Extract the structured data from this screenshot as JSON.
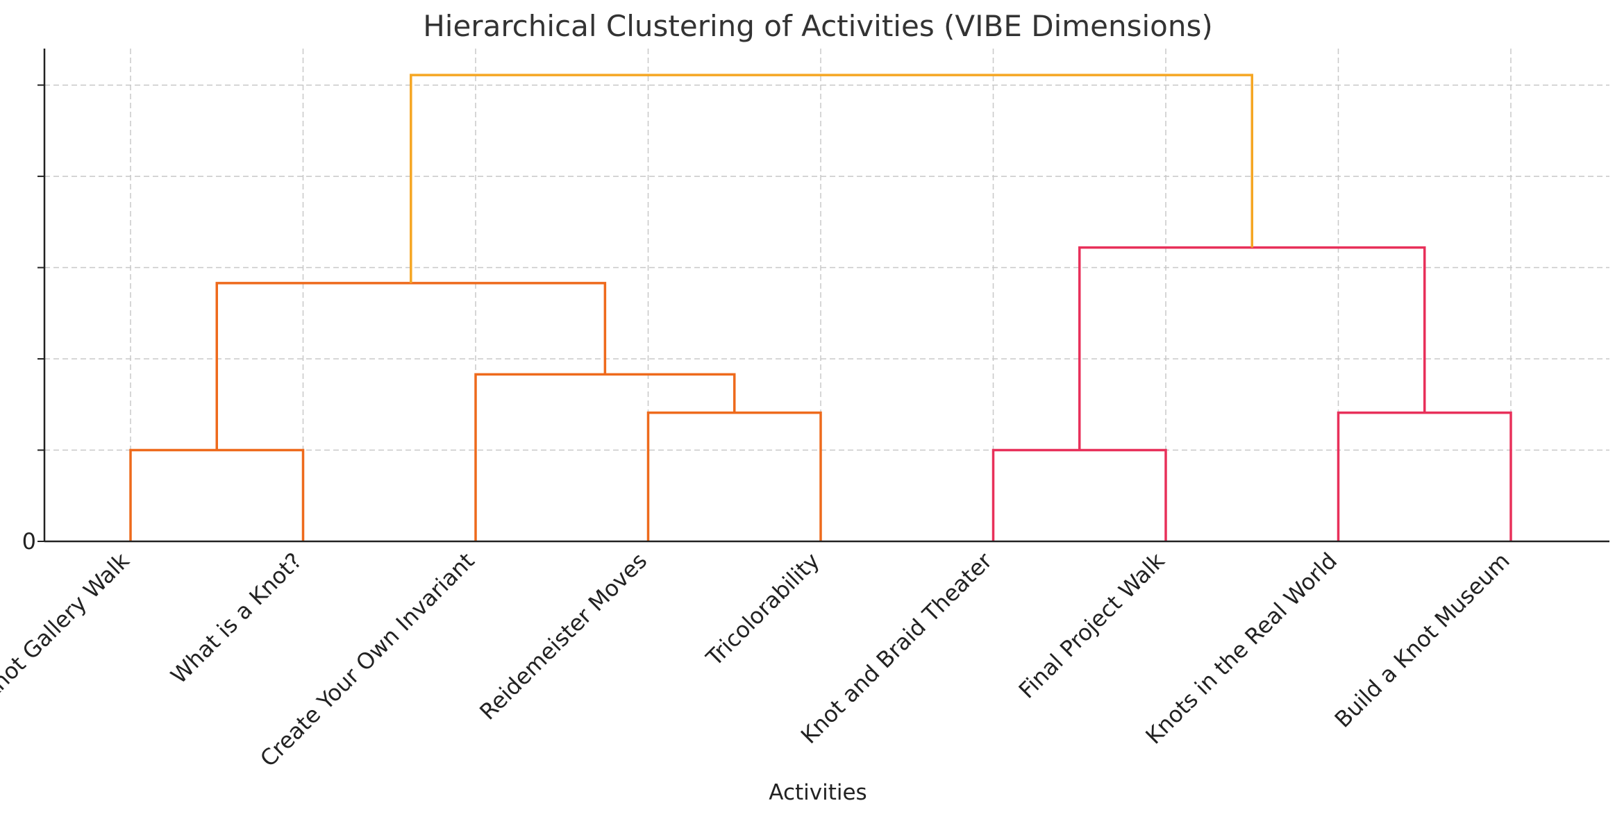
{
  "chart_data": {
    "type": "dendrogram",
    "title": "Hierarchical Clustering of Activities (VIBE Dimensions)",
    "xlabel": "Activities",
    "ylabel": "",
    "ylim": [
      0,
      5.4
    ],
    "y_ticks": [
      0,
      1,
      2,
      3,
      4,
      5
    ],
    "y_tick_labels": [
      "0",
      "",
      "",
      "",
      "",
      ""
    ],
    "grid": true,
    "leaves": [
      "Knot Gallery Walk",
      "What is a Knot?",
      "Create Your Own Invariant",
      "Reidemeister Moves",
      "Tricolorability",
      "Knot and Braid Theater",
      "Final Project Walk",
      "Knots in the Real World",
      "Build a Knot Museum"
    ],
    "merges": [
      {
        "left": "Knot Gallery Walk",
        "right": "What is a Knot?",
        "height": 1.0,
        "color": "#ee6a1c"
      },
      {
        "left": "Reidemeister Moves",
        "right": "Tricolorability",
        "height": 1.41,
        "color": "#ee6a1c"
      },
      {
        "left": "Create Your Own Invariant",
        "right": "merge-2",
        "height": 1.83,
        "color": "#ee6a1c"
      },
      {
        "left": "merge-1",
        "right": "merge-3",
        "height": 2.83,
        "color": "#ee6a1c"
      },
      {
        "left": "Knot and Braid Theater",
        "right": "Final Project Walk",
        "height": 1.0,
        "color": "#e8305a"
      },
      {
        "left": "Knots in the Real World",
        "right": "Build a Knot Museum",
        "height": 1.41,
        "color": "#e8305a"
      },
      {
        "left": "merge-5",
        "right": "merge-6",
        "height": 3.22,
        "color": "#e8305a"
      },
      {
        "left": "merge-4",
        "right": "merge-7",
        "height": 5.11,
        "color": "#f5a623"
      }
    ]
  }
}
